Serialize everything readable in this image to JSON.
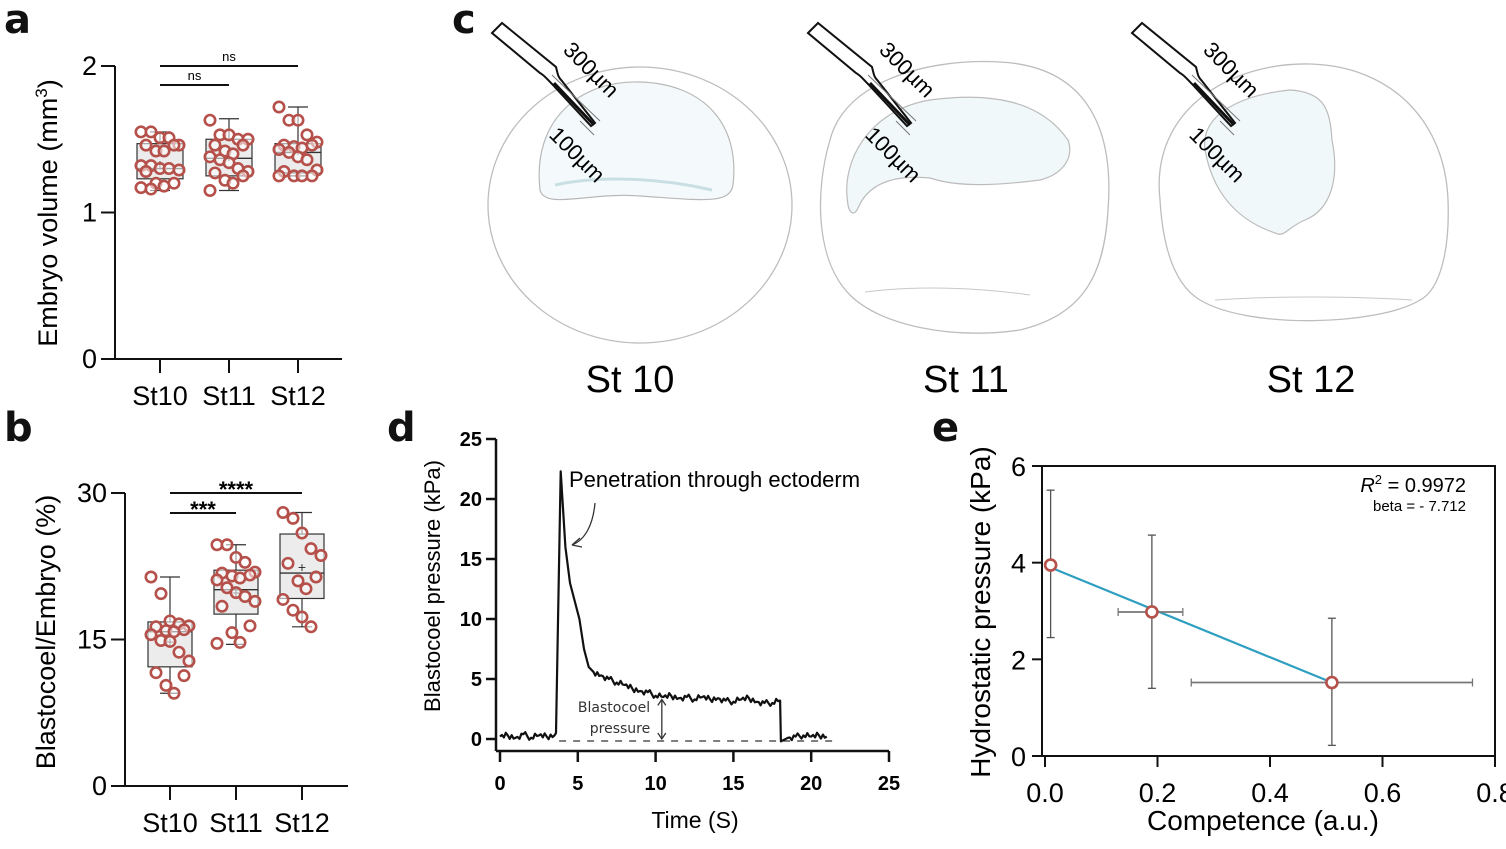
{
  "panels": {
    "a": {
      "letter": "a"
    },
    "b": {
      "letter": "b"
    },
    "c": {
      "letter": "c"
    },
    "d": {
      "letter": "d"
    },
    "e": {
      "letter": "e"
    }
  },
  "colors": {
    "point_stroke": "#b5504a",
    "box_fill": "#ececec",
    "fit_line": "#2e9fc0",
    "embryo_outline": "#bfbfbf",
    "blastocoel_tint": "#dfeff2"
  },
  "chart_data": [
    {
      "id": "a",
      "type": "box",
      "ylabel": "Embryo volume (mm³)",
      "ylabel_base": "Embryo volume (mm",
      "ylabel_sup": "3",
      "ylabel_end": ")",
      "ylim": [
        0,
        2
      ],
      "yticks": [
        "0",
        "1",
        "2"
      ],
      "yticks_values": [
        0,
        1,
        2
      ],
      "categories": [
        "St10",
        "St11",
        "St12"
      ],
      "boxes": [
        {
          "min": 1.15,
          "q1": 1.23,
          "median": 1.3,
          "q3": 1.47,
          "max": 1.55,
          "mean": 1.33
        },
        {
          "min": 1.15,
          "q1": 1.25,
          "median": 1.37,
          "q3": 1.5,
          "max": 1.64,
          "mean": 1.38
        },
        {
          "min": 1.25,
          "q1": 1.27,
          "median": 1.41,
          "q3": 1.47,
          "max": 1.72,
          "mean": 1.42
        }
      ],
      "points": [
        [
          1.55,
          1.55,
          1.51,
          1.51,
          1.46,
          1.46,
          1.46,
          1.42,
          1.42,
          1.32,
          1.32,
          1.3,
          1.3,
          1.29,
          1.28,
          1.2,
          1.2,
          1.18,
          1.17,
          1.16
        ],
        [
          1.63,
          1.53,
          1.53,
          1.5,
          1.5,
          1.46,
          1.46,
          1.42,
          1.4,
          1.38,
          1.36,
          1.34,
          1.3,
          1.28,
          1.27,
          1.25,
          1.22,
          1.2,
          1.15
        ],
        [
          1.72,
          1.63,
          1.63,
          1.53,
          1.48,
          1.46,
          1.46,
          1.45,
          1.44,
          1.43,
          1.41,
          1.38,
          1.36,
          1.29,
          1.28,
          1.25,
          1.25,
          1.25,
          1.25
        ]
      ],
      "significance": [
        {
          "from": "St10",
          "to": "St11",
          "label": "ns"
        },
        {
          "from": "St10",
          "to": "St12",
          "label": "ns"
        }
      ]
    },
    {
      "id": "b",
      "type": "box",
      "ylabel": "Blastocoel/Embryo (%)",
      "ylim": [
        0,
        30
      ],
      "yticks": [
        "0",
        "15",
        "30"
      ],
      "yticks_values": [
        0,
        15,
        30
      ],
      "categories": [
        "St10",
        "St11",
        "St12"
      ],
      "boxes": [
        {
          "min": 9.5,
          "q1": 12.2,
          "median": 15.8,
          "q3": 16.8,
          "max": 21.4,
          "mean": 14.8
        },
        {
          "min": 14.5,
          "q1": 17.6,
          "median": 20.1,
          "q3": 22.1,
          "max": 24.7,
          "mean": 19.8
        },
        {
          "min": 16.3,
          "q1": 19.2,
          "median": 21.8,
          "q3": 25.8,
          "max": 28.0,
          "mean": 22.4
        }
      ],
      "points": [
        [
          21.4,
          19.7,
          16.9,
          16.6,
          16.4,
          16.3,
          16.0,
          15.9,
          15.8,
          15.5,
          14.9,
          14.8,
          13.7,
          12.8,
          11.6,
          11.3,
          10.3,
          9.5
        ],
        [
          24.7,
          24.7,
          23.4,
          22.9,
          21.9,
          21.8,
          21.6,
          21.5,
          21.3,
          21.1,
          20.3,
          19.8,
          19.4,
          18.9,
          18.4,
          16.4,
          15.7,
          14.7,
          14.6
        ],
        [
          28.0,
          27.4,
          25.9,
          24.3,
          23.6,
          22.8,
          21.4,
          21.0,
          20.2,
          19.1,
          18.0,
          17.3,
          16.3
        ]
      ],
      "significance": [
        {
          "from": "St10",
          "to": "St11",
          "label": "***"
        },
        {
          "from": "St10",
          "to": "St12",
          "label": "****"
        }
      ]
    },
    {
      "id": "d",
      "type": "line",
      "xlabel": "Time (S)",
      "ylabel": "Blastocoel pressure (kPa)",
      "xlim": [
        0,
        25
      ],
      "ylim": [
        0,
        25
      ],
      "xticks": [
        "0",
        "5",
        "10",
        "15",
        "20",
        "25"
      ],
      "xticks_values": [
        0,
        5,
        10,
        15,
        20,
        25
      ],
      "yticks": [
        "0",
        "5",
        "10",
        "15",
        "20",
        "25"
      ],
      "yticks_values": [
        0,
        5,
        10,
        15,
        20,
        25
      ],
      "series": [
        {
          "name": "pressure trace",
          "x": [
            0,
            0.5,
            1,
            1.5,
            2,
            2.5,
            3,
            3.5,
            3.6,
            3.9,
            4.2,
            4.5,
            4.8,
            5.1,
            5.4,
            5.7,
            6,
            6.5,
            7,
            7.5,
            8,
            8.5,
            9,
            9.5,
            10,
            10.5,
            11,
            11.5,
            12,
            12.5,
            13,
            13.5,
            14,
            14.5,
            15,
            15.5,
            16,
            16.5,
            17,
            17.5,
            18,
            18.05,
            18.5,
            19,
            19.5,
            20,
            20.5,
            21
          ],
          "y": [
            0.2,
            0.3,
            0.1,
            0.4,
            0.1,
            0.3,
            0.2,
            0.3,
            0.5,
            22.3,
            16,
            13,
            11.5,
            10,
            7.5,
            6,
            5.6,
            5.3,
            5,
            4.7,
            4.5,
            4.2,
            4,
            3.9,
            3.6,
            3.5,
            3.6,
            3.4,
            3.5,
            3.3,
            3.5,
            3.3,
            3.4,
            3.2,
            3.1,
            3.3,
            3.4,
            3.1,
            3.0,
            3.0,
            3.2,
            -0.2,
            0.1,
            0.2,
            0.3,
            0.2,
            0.3,
            0.2
          ]
        }
      ],
      "baseline": 0,
      "annotations": {
        "peak": "Penetration through ectoderm",
        "blastocoel_line1": "Blastocoel",
        "blastocoel_line2": "pressure"
      }
    },
    {
      "id": "e",
      "type": "scatter",
      "xlabel": "Competence (a.u.)",
      "ylabel": "Hydrostatic pressure (kPa)",
      "xlim": [
        0,
        0.8
      ],
      "ylim": [
        0,
        6
      ],
      "xticks": [
        "0.0",
        "0.2",
        "0.4",
        "0.6",
        "0.8"
      ],
      "xticks_values": [
        0,
        0.2,
        0.4,
        0.6,
        0.8
      ],
      "yticks": [
        "0",
        "2",
        "4",
        "6"
      ],
      "yticks_values": [
        0,
        2,
        4,
        6
      ],
      "points": [
        {
          "x": 0.01,
          "y": 3.95,
          "xerr_low": 0.01,
          "xerr_high": 0.01,
          "yerr_low": 2.45,
          "yerr_high": 5.5
        },
        {
          "x": 0.19,
          "y": 2.98,
          "xerr_low": 0.13,
          "xerr_high": 0.245,
          "yerr_low": 1.4,
          "yerr_high": 4.57
        },
        {
          "x": 0.51,
          "y": 1.52,
          "xerr_low": 0.26,
          "xerr_high": 0.76,
          "yerr_low": 0.22,
          "yerr_high": 2.85
        }
      ],
      "fit": {
        "x": [
          0.01,
          0.51
        ],
        "y": [
          3.9,
          1.52
        ]
      },
      "stats": {
        "r2_label": "R",
        "r2_sup": "2",
        "r2_value": " = 0.9972",
        "beta": "beta = - 7.712"
      }
    }
  ],
  "diagram_c": {
    "stages": [
      {
        "label": "St 10",
        "scale_long": "300µm",
        "scale_short": "100µm"
      },
      {
        "label": "St 11",
        "scale_long": "300µm",
        "scale_short": "100µm"
      },
      {
        "label": "St 12",
        "scale_long": "300µm",
        "scale_short": "100µm"
      }
    ]
  }
}
